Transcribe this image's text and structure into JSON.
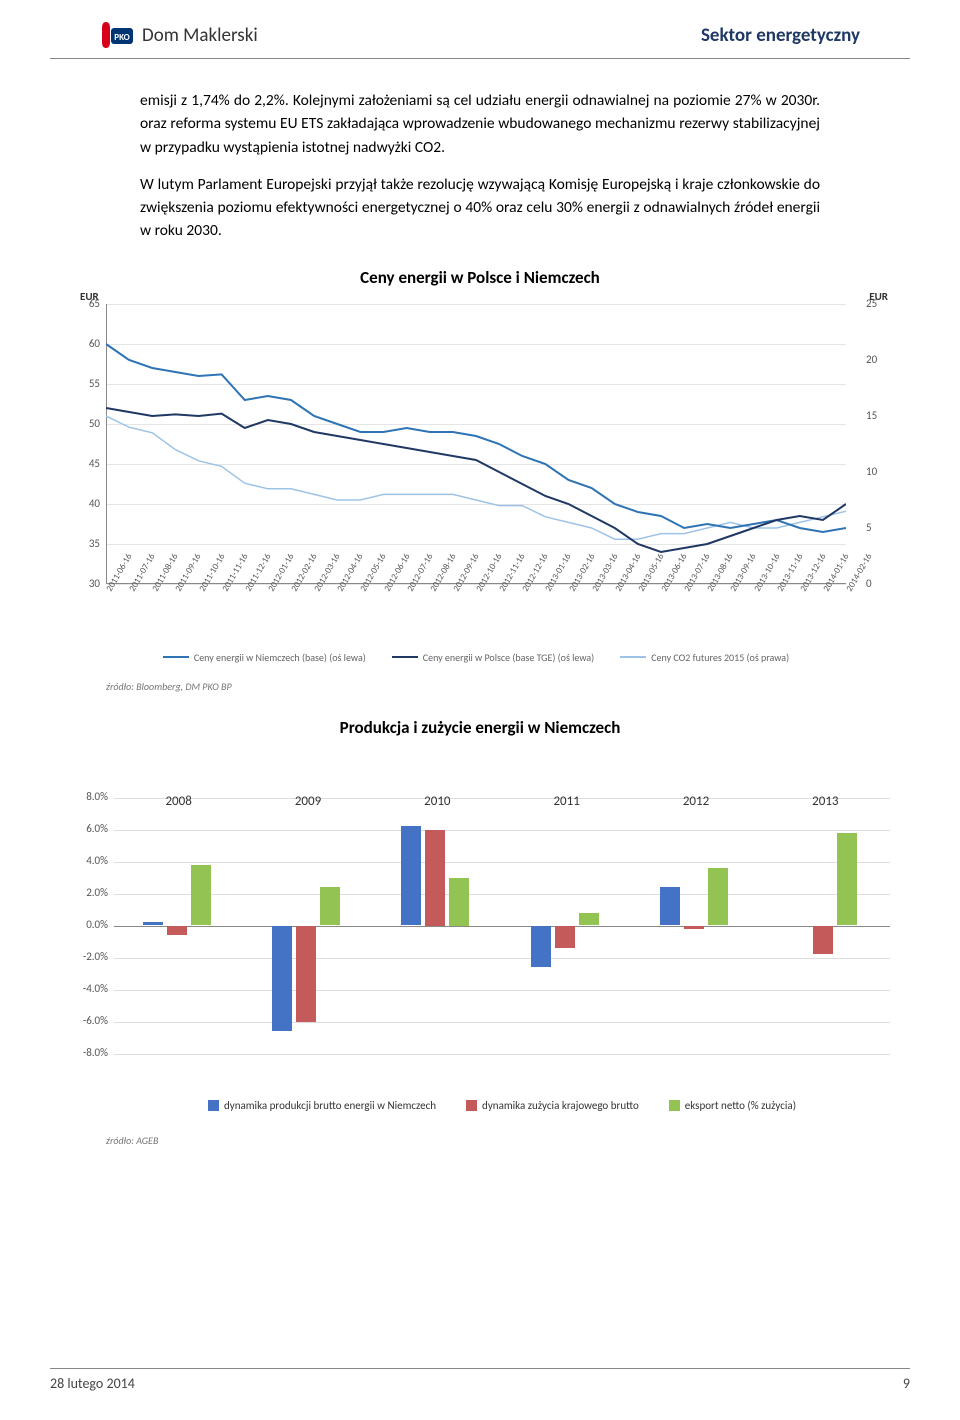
{
  "header": {
    "brand": "Dom Maklerski",
    "sector": "Sektor energetyczny"
  },
  "logo_colors": {
    "red": "#d6001c",
    "blue": "#003574"
  },
  "paragraphs": [
    "emisji z 1,74% do 2,2%. Kolejnymi założeniami są cel udziału energii odnawialnej na poziomie 27% w 2030r. oraz reforma systemu EU ETS zakładająca wprowadzenie wbudowanego mechanizmu rezerwy stabilizacyjnej w przypadku wystąpienia istotnej nadwyżki CO2.",
    "W lutym Parlament Europejski przyjął także rezolucję wzywającą Komisję Europejską i kraje członkowskie do zwiększenia poziomu efektywności energetycznej o 40% oraz celu 30% energii z odnawialnych źródeł energii w roku 2030."
  ],
  "chart1": {
    "title": "Ceny energii w Polsce i Niemczech",
    "unit": "EUR",
    "y_left": {
      "min": 30,
      "max": 65,
      "step": 5
    },
    "y_right": {
      "min": 0,
      "max": 25,
      "step": 5
    },
    "x_labels": [
      "2011-06-16",
      "2011-07-16",
      "2011-08-16",
      "2011-09-16",
      "2011-10-16",
      "2011-11-16",
      "2011-12-16",
      "2012-01-16",
      "2012-02-16",
      "2012-03-16",
      "2012-04-16",
      "2012-05-16",
      "2012-06-16",
      "2012-07-16",
      "2012-08-16",
      "2012-09-16",
      "2012-10-16",
      "2012-11-16",
      "2012-12-16",
      "2013-01-16",
      "2013-02-16",
      "2013-03-16",
      "2013-04-16",
      "2013-05-16",
      "2013-06-16",
      "2013-07-16",
      "2013-08-16",
      "2013-09-16",
      "2013-10-16",
      "2013-11-16",
      "2013-12-16",
      "2014-01-16",
      "2014-02-16"
    ],
    "colors": {
      "de": "#2E74B5",
      "pl": "#1F3864",
      "co2": "#9DC3E6",
      "grid": "#e5e5e5"
    },
    "series_de": [
      60,
      58,
      57,
      56.5,
      56,
      56.2,
      53,
      53.5,
      53,
      51,
      50,
      49,
      49,
      49.5,
      49,
      49,
      48.5,
      47.5,
      46,
      45,
      43,
      42,
      40,
      39,
      38.5,
      37,
      37.5,
      37,
      37.5,
      38,
      37,
      36.5,
      37
    ],
    "series_pl": [
      52,
      51.5,
      51,
      51.2,
      51,
      51.3,
      49.5,
      50.5,
      50,
      49,
      48.5,
      48,
      47.5,
      47,
      46.5,
      46,
      45.5,
      44,
      42.5,
      41,
      40,
      38.5,
      37,
      35,
      34,
      34.5,
      35,
      36,
      37,
      38,
      38.5,
      38,
      40
    ],
    "series_co2": [
      15,
      14,
      13.5,
      12,
      11,
      10.5,
      9,
      8.5,
      8.5,
      8,
      7.5,
      7.5,
      8,
      8,
      8,
      8,
      7.5,
      7,
      7,
      6,
      5.5,
      5,
      4,
      4,
      4.5,
      4.5,
      5,
      5.5,
      5,
      5,
      5.5,
      6,
      6.5
    ],
    "legend": [
      "Ceny energii w Niemczech (base) (oś lewa)",
      "Ceny energii w Polsce (base TGE) (oś lewa)",
      "Ceny CO2 futures 2015 (oś prawa)"
    ],
    "source": "źródło: Bloomberg, DM PKO BP"
  },
  "chart2": {
    "title": "Produkcja i zużycie energii w Niemczech",
    "y": {
      "min": -8,
      "max": 8,
      "step": 2,
      "suffix": "%"
    },
    "years": [
      "2008",
      "2009",
      "2010",
      "2011",
      "2012",
      "2013"
    ],
    "colors": {
      "s1": "#4472C4",
      "s2": "#C55A5A",
      "s3": "#92C353"
    },
    "series1": [
      0.2,
      -6.6,
      6.2,
      -2.6,
      2.4,
      0.0
    ],
    "series2": [
      -0.6,
      -6.0,
      6.0,
      -1.4,
      -0.2,
      -1.8
    ],
    "series3": [
      3.8,
      2.4,
      3.0,
      0.8,
      3.6,
      5.8
    ],
    "legend": [
      "dynamika produkcji brutto energii w Niemczech",
      "dynamika zużycia krajowego brutto",
      "eksport netto (% zużycia)"
    ],
    "source": "źródło: AGEB"
  },
  "footer": {
    "date": "28 lutego 2014",
    "page": "9"
  }
}
